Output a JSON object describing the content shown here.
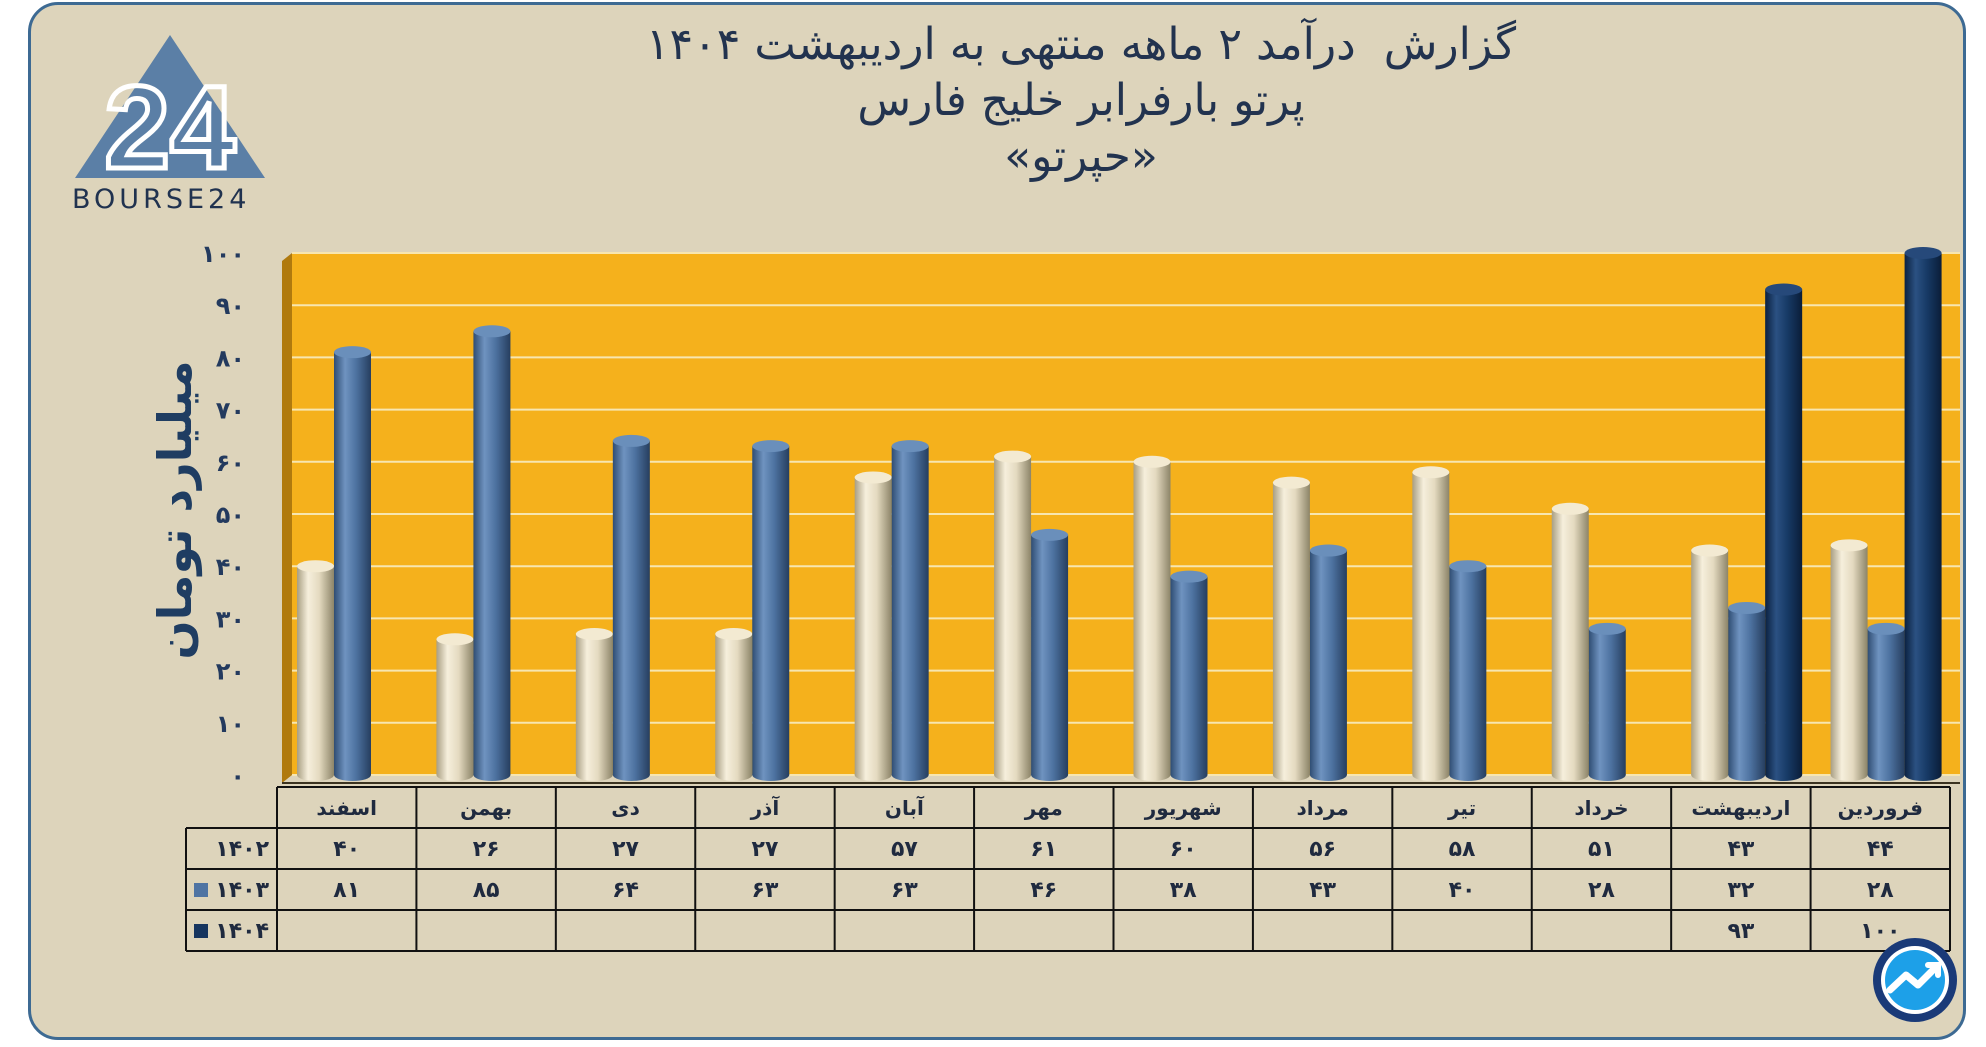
{
  "title_lines": [
    "گزارش  درآمد ۲ ماهه منتهی به اردیبهشت ۱۴۰۴",
    "پرتو بارفرابر خلیج فارس",
    "«حپرتو»"
  ],
  "logo": {
    "text": "BOURSE24",
    "mark": "24",
    "icon": "triangle-logo-icon"
  },
  "corner_icon": "trend-arrow-icon",
  "colors": {
    "s1402": "#e9e0c6",
    "s1403": "#4f74a3",
    "s1404": "#16355f",
    "plot_bg": "#f5b11c",
    "frame_bg": "#ddd4bb"
  },
  "chart_data": {
    "type": "bar",
    "ylabel": "میلیارد تومان",
    "ylim": [
      0,
      100
    ],
    "yticks": [
      0,
      10,
      20,
      30,
      40,
      50,
      60,
      70,
      80,
      90,
      100
    ],
    "ytick_labels": [
      "۰",
      "۱۰",
      "۲۰",
      "۳۰",
      "۴۰",
      "۵۰",
      "۶۰",
      "۷۰",
      "۸۰",
      "۹۰",
      "۱۰۰"
    ],
    "grid": true,
    "categories": [
      "فروردین",
      "اردیبهشت",
      "خرداد",
      "تیر",
      "مرداد",
      "شهریور",
      "مهر",
      "آبان",
      "آذر",
      "دی",
      "بهمن",
      "اسفند"
    ],
    "series": [
      {
        "name": "۱۴۰۲",
        "values": [
          44,
          43,
          51,
          58,
          56,
          60,
          61,
          57,
          27,
          27,
          26,
          40
        ],
        "labels": [
          "۴۴",
          "۴۳",
          "۵۱",
          "۵۸",
          "۵۶",
          "۶۰",
          "۶۱",
          "۵۷",
          "۲۷",
          "۲۷",
          "۲۶",
          "۴۰"
        ]
      },
      {
        "name": "۱۴۰۳",
        "values": [
          28,
          32,
          28,
          40,
          43,
          38,
          46,
          63,
          63,
          64,
          85,
          81
        ],
        "labels": [
          "۲۸",
          "۳۲",
          "۲۸",
          "۴۰",
          "۴۳",
          "۳۸",
          "۴۶",
          "۶۳",
          "۶۳",
          "۶۴",
          "۸۵",
          "۸۱"
        ]
      },
      {
        "name": "۱۴۰۴",
        "values": [
          100,
          93,
          null,
          null,
          null,
          null,
          null,
          null,
          null,
          null,
          null,
          null
        ],
        "labels": [
          "۱۰۰",
          "۹۳",
          "",
          "",
          "",
          "",
          "",
          "",
          "",
          "",
          "",
          ""
        ]
      }
    ]
  }
}
